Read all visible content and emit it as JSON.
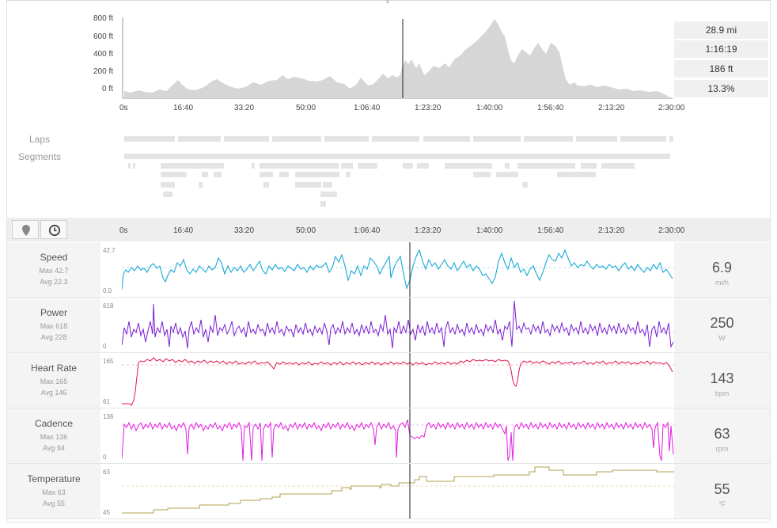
{
  "elevation": {
    "y_ticks": [
      "800 ft",
      "600 ft",
      "400 ft",
      "200 ft",
      "0 ft"
    ],
    "x_ticks": [
      "0s",
      "16:40",
      "33:20",
      "50:00",
      "1:06:40",
      "1:23:20",
      "1:40:00",
      "1:56:40",
      "2:13:20",
      "2:30:00"
    ],
    "stats": [
      "28.9 mi",
      "1:16:19",
      "186 ft",
      "13.3%"
    ],
    "fill_color": "#d6d6d6"
  },
  "tracks": {
    "laps_label": "Laps",
    "segments_label": "Segments"
  },
  "toolbar": {
    "map_icon": "map-pin-icon",
    "clock_icon": "clock-icon"
  },
  "streams": [
    {
      "name": "Speed",
      "max": "Max 42.7",
      "avg": "Avg 22.3",
      "value": "6.9",
      "unit": "mi/h",
      "ymax": "42.7",
      "ymin": "0.0",
      "color": "#1aa8d8"
    },
    {
      "name": "Power",
      "max": "Max 618",
      "avg": "Avg 228",
      "value": "250",
      "unit": "W",
      "ymax": "618",
      "ymin": "0",
      "color": "#7a1fd4"
    },
    {
      "name": "Heart Rate",
      "max": "Max 165",
      "avg": "Avg 146",
      "value": "143",
      "unit": "bpm",
      "ymax": "165",
      "ymin": "61",
      "color": "#e0164a"
    },
    {
      "name": "Cadence",
      "max": "Max 136",
      "avg": "Avg 94",
      "value": "63",
      "unit": "rpm",
      "ymax": "136",
      "ymin": "0",
      "color": "#e21de0"
    },
    {
      "name": "Temperature",
      "max": "Max 63",
      "avg": "Avg 55",
      "value": "55",
      "unit": "°F",
      "ymax": "63",
      "ymin": "45",
      "color": "#b0a050"
    }
  ]
}
